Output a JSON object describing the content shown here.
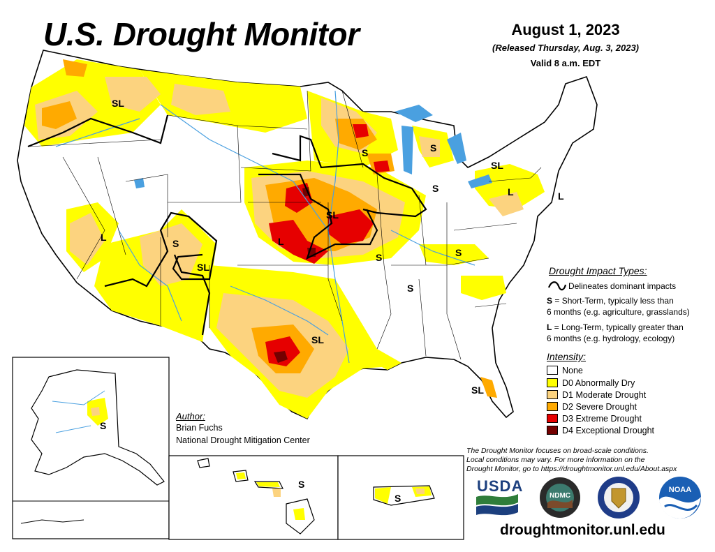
{
  "header": {
    "title": "U.S. Drought Monitor",
    "date": "August 1, 2023",
    "released": "(Released Thursday, Aug. 3, 2023)",
    "valid": "Valid 8 a.m. EDT"
  },
  "impact_legend": {
    "heading": "Drought Impact Types:",
    "line_desc": "Delineates dominant impacts",
    "short_key": "S",
    "short_desc_1": " = Short-Term, typically less than",
    "short_desc_2": "6 months (e.g. agriculture, grasslands)",
    "long_key": "L",
    "long_desc_1": " = Long-Term, typically greater than",
    "long_desc_2": "6 months (e.g. hydrology, ecology)"
  },
  "intensity_legend": {
    "heading": "Intensity:",
    "items": [
      {
        "label": "None",
        "color": "#ffffff"
      },
      {
        "label": "D0 Abnormally Dry",
        "color": "#ffff00"
      },
      {
        "label": "D1 Moderate Drought",
        "color": "#fcd37f"
      },
      {
        "label": "D2 Severe Drought",
        "color": "#ffaa00"
      },
      {
        "label": "D3 Extreme Drought",
        "color": "#e60000"
      },
      {
        "label": "D4 Exceptional Drought",
        "color": "#730000"
      }
    ]
  },
  "author": {
    "heading": "Author:",
    "name": "Brian Fuchs",
    "org": "National Drought Mitigation Center"
  },
  "note": {
    "line1": "The Drought Monitor focuses on broad-scale conditions.",
    "line2": "Local conditions may vary. For more information on the",
    "line3": "Drought Monitor, go to https://droughtmonitor.unl.edu/About.aspx"
  },
  "logos": {
    "usda": "USDA",
    "ndmc": "NDMC",
    "noaa": "NOAA"
  },
  "url": "droughtmonitor.unl.edu",
  "map_labels": {
    "sl": "SL",
    "s": "S",
    "l": "L"
  },
  "colors": {
    "d0": "#ffff00",
    "d1": "#fcd37f",
    "d2": "#ffaa00",
    "d3": "#e60000",
    "d4": "#730000",
    "water": "#4aa0e0",
    "usda_blue": "#1c3f7e",
    "usda_green": "#2f7d3a",
    "noaa_blue": "#1a5fb4"
  }
}
